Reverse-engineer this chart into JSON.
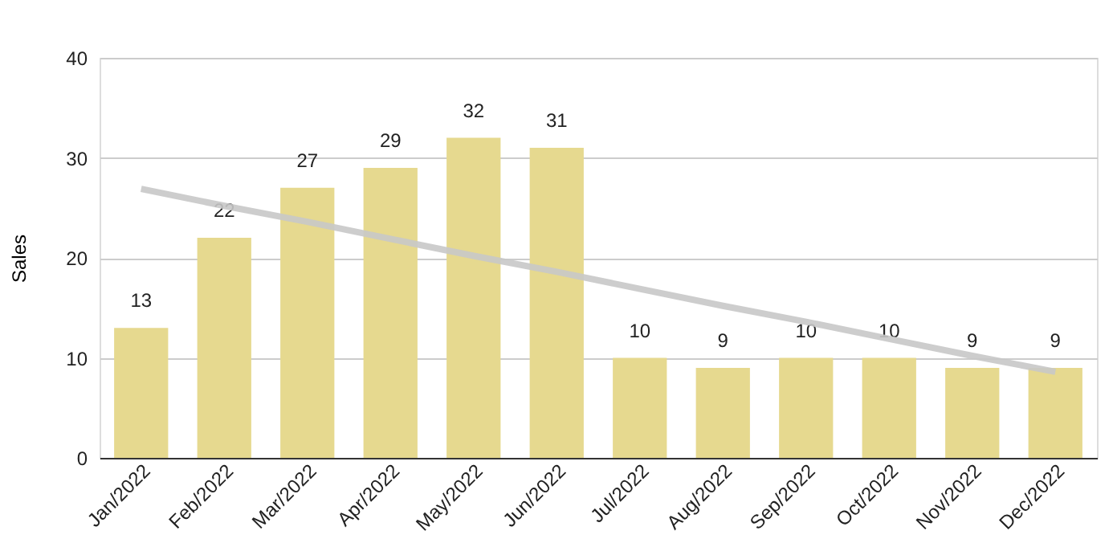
{
  "chart_data": {
    "type": "bar",
    "ylabel": "Sales",
    "categories": [
      "Jan/2022",
      "Feb/2022",
      "Mar/2022",
      "Apr/2022",
      "May/2022",
      "Jun/2022",
      "Jul/2022",
      "Aug/2022",
      "Sep/2022",
      "Oct/2022",
      "Nov/2022",
      "Dec/2022"
    ],
    "series": [
      {
        "color": "#e6d98f",
        "values": [
          13,
          22,
          27,
          29,
          32,
          31,
          10,
          9,
          10,
          10,
          9,
          9
        ],
        "value_labels": [
          "13",
          "22",
          "27",
          "29",
          "32",
          "31",
          "10",
          "9",
          "10",
          "10",
          "9",
          "9"
        ]
      },
      {
        "type": "line",
        "color": "#c8c8c8",
        "values": [
          26.9,
          25.2,
          23.6,
          21.9,
          20.2,
          18.6,
          16.9,
          15.2,
          13.6,
          11.9,
          10.2,
          8.6
        ]
      }
    ],
    "ylim": [
      0,
      40
    ],
    "yticks": [
      0,
      10,
      20,
      30,
      40
    ],
    "grid": "y"
  }
}
